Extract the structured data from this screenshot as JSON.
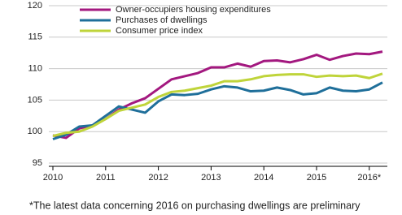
{
  "chart_data": {
    "type": "line",
    "footnote": "*The latest data concerning 2016 on purchasing dwellings are preliminary",
    "x": [
      2010,
      2010.25,
      2010.5,
      2010.75,
      2011,
      2011.25,
      2011.5,
      2011.75,
      2012,
      2012.25,
      2012.5,
      2012.75,
      2013,
      2013.25,
      2013.5,
      2013.75,
      2014,
      2014.25,
      2014.5,
      2014.75,
      2015,
      2015.25,
      2015.5,
      2015.75,
      2016,
      2016.25
    ],
    "series": [
      {
        "name": "Owner-occupiers housing expenditures",
        "color": "#a3187f",
        "values": [
          99.4,
          99.0,
          100.5,
          101.0,
          102.0,
          103.5,
          104.5,
          105.3,
          106.8,
          108.3,
          108.8,
          109.3,
          110.2,
          110.2,
          110.8,
          110.3,
          111.2,
          111.3,
          111.0,
          111.5,
          112.2,
          111.4,
          112.0,
          112.4,
          112.3,
          112.7
        ]
      },
      {
        "name": "Purchases of dwellings",
        "color": "#1f6f9a",
        "values": [
          98.8,
          99.5,
          100.8,
          101.0,
          102.5,
          104.0,
          103.5,
          103.0,
          104.8,
          105.9,
          105.8,
          106.0,
          106.7,
          107.2,
          107.0,
          106.4,
          106.5,
          107.0,
          106.6,
          105.9,
          106.1,
          107.0,
          106.5,
          106.4,
          106.7,
          107.8
        ]
      },
      {
        "name": "Consumer price index",
        "color": "#bfd43a",
        "values": [
          99.3,
          99.8,
          100.0,
          100.8,
          102.0,
          103.3,
          103.8,
          104.3,
          105.5,
          106.3,
          106.5,
          106.9,
          107.3,
          108.0,
          108.0,
          108.3,
          108.8,
          109.0,
          109.1,
          109.1,
          108.7,
          108.9,
          108.8,
          108.9,
          108.5,
          109.2
        ]
      }
    ],
    "xlim": [
      2010,
      2016.25
    ],
    "xticks": [
      2010,
      2011,
      2012,
      2013,
      2014,
      2015,
      {
        "value": 2016,
        "label": "2016*"
      }
    ],
    "ylim": [
      95,
      120
    ],
    "yticks": [
      95,
      100,
      105,
      110,
      115,
      120
    ],
    "grid": true
  }
}
